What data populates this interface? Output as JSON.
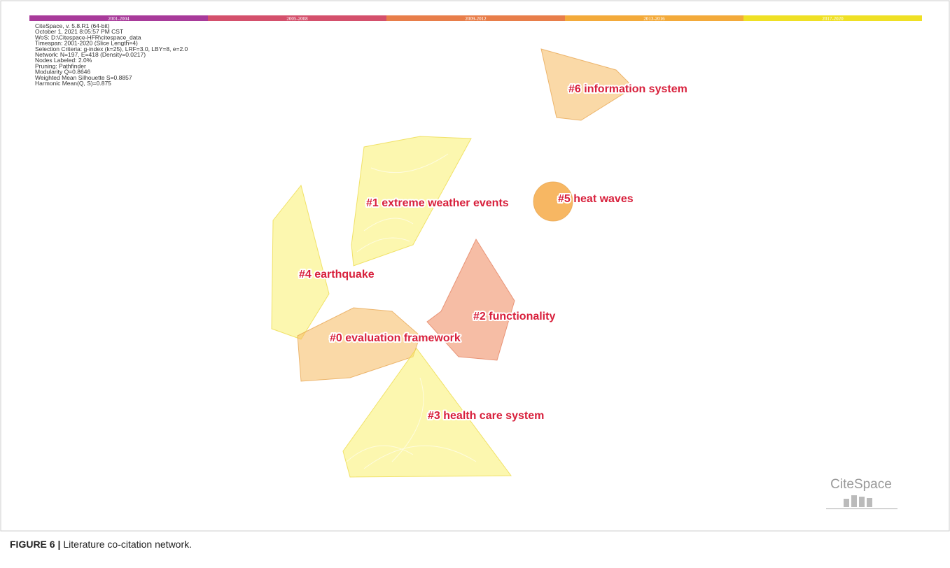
{
  "timeline": [
    "2001-2004",
    "2005-2008",
    "2009-2012",
    "2013-2016",
    "2017-2020"
  ],
  "info": [
    "CiteSpace, v. 5.8.R1 (64-bit)",
    "October 1, 2021 8:05:57 PM CST",
    "WoS: D:\\Citespace-HFR\\citespace_data",
    "Timespan: 2001-2020 (Slice Length=4)",
    "Selection Criteria: g-index (k=25), LRF=3.0, LBY=8, e=2.0",
    "Network: N=197, E=418 (Density=0.0217)",
    "Nodes Labeled: 2.0%",
    "Pruning: Pathfinder",
    "Modularity Q=0.8646",
    "Weighted Mean Silhouette S=0.8857",
    "Harmonic Mean(Q, S)=0.875"
  ],
  "clusters": [
    "#6 information system",
    "#1 extreme weather events",
    "#5 heat waves",
    "#4 earthquake",
    "#2 functionality",
    "#0 evaluation framework",
    "#3 health care system"
  ],
  "logo": "CiteSpace",
  "caption": {
    "label": "FIGURE 6 |",
    "text": "Literature co-citation network."
  }
}
